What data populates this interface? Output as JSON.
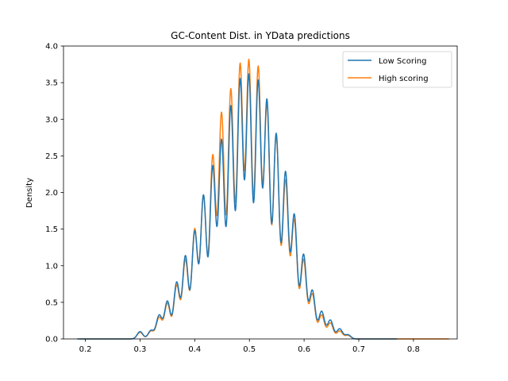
{
  "chart_data": {
    "type": "line",
    "title": "GC-Content Dist. in YData predictions",
    "xlabel": "",
    "ylabel": "Density",
    "xlim": [
      0.16,
      0.88
    ],
    "ylim": [
      0,
      4.0
    ],
    "xticks": [
      0.2,
      0.3,
      0.4,
      0.5,
      0.6,
      0.7,
      0.8
    ],
    "yticks": [
      0.0,
      0.5,
      1.0,
      1.5,
      2.0,
      2.5,
      3.0,
      3.5,
      4.0
    ],
    "legend_position": "top-right",
    "grid": false,
    "series": [
      {
        "name": "Low Scoring",
        "color": "#1f77b4",
        "x_range": [
          0.185,
          0.77
        ],
        "peaks": [
          [
            0.3,
            0.1
          ],
          [
            0.32,
            0.12
          ],
          [
            0.335,
            0.33
          ],
          [
            0.35,
            0.52
          ],
          [
            0.367,
            0.78
          ],
          [
            0.383,
            1.14
          ],
          [
            0.4,
            1.48
          ],
          [
            0.416,
            1.97
          ],
          [
            0.433,
            2.37
          ],
          [
            0.449,
            2.73
          ],
          [
            0.466,
            3.19
          ],
          [
            0.483,
            3.56
          ],
          [
            0.499,
            3.62
          ],
          [
            0.516,
            3.54
          ],
          [
            0.532,
            3.28
          ],
          [
            0.549,
            2.81
          ],
          [
            0.566,
            2.29
          ],
          [
            0.582,
            1.71
          ],
          [
            0.599,
            1.16
          ],
          [
            0.615,
            0.67
          ],
          [
            0.632,
            0.38
          ],
          [
            0.648,
            0.26
          ],
          [
            0.665,
            0.14
          ],
          [
            0.68,
            0.06
          ]
        ]
      },
      {
        "name": "High scoring",
        "color": "#ff7f0e",
        "x_range": [
          0.19,
          0.865
        ],
        "peaks": [
          [
            0.3,
            0.09
          ],
          [
            0.32,
            0.11
          ],
          [
            0.335,
            0.3
          ],
          [
            0.35,
            0.49
          ],
          [
            0.367,
            0.74
          ],
          [
            0.383,
            1.09
          ],
          [
            0.4,
            1.51
          ],
          [
            0.416,
            1.96
          ],
          [
            0.433,
            2.52
          ],
          [
            0.449,
            3.1
          ],
          [
            0.466,
            3.42
          ],
          [
            0.483,
            3.77
          ],
          [
            0.499,
            3.82
          ],
          [
            0.516,
            3.73
          ],
          [
            0.532,
            3.22
          ],
          [
            0.549,
            2.79
          ],
          [
            0.566,
            2.18
          ],
          [
            0.582,
            1.64
          ],
          [
            0.599,
            1.09
          ],
          [
            0.615,
            0.62
          ],
          [
            0.632,
            0.33
          ],
          [
            0.648,
            0.22
          ],
          [
            0.665,
            0.11
          ],
          [
            0.68,
            0.05
          ]
        ]
      }
    ]
  }
}
